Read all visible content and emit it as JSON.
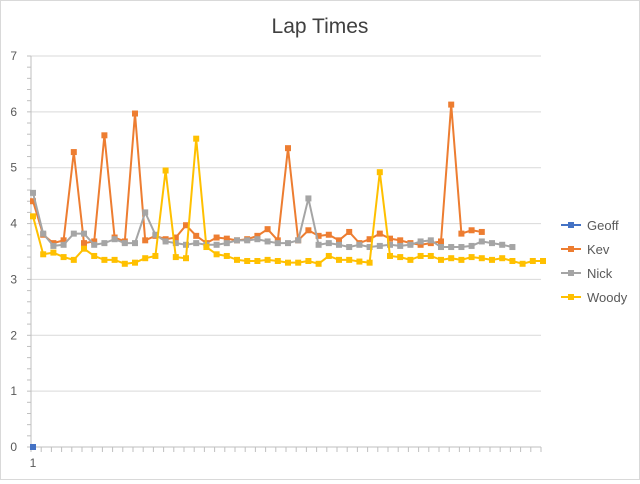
{
  "chart_data": {
    "type": "line",
    "title": "Lap Times",
    "xlabel": "",
    "ylabel": "",
    "ylim": [
      0,
      7
    ],
    "yticks": [
      0,
      1,
      2,
      3,
      4,
      5,
      6,
      7
    ],
    "x_tick_labels": [
      "1"
    ],
    "x_count": 50,
    "grid": "horizontal",
    "legend_position": "right",
    "series": [
      {
        "name": "Geoff",
        "color": "#4472C4",
        "values": [
          0
        ]
      },
      {
        "name": "Kev",
        "color": "#ED7D31",
        "values": [
          4.4,
          3.8,
          3.65,
          3.7,
          5.28,
          3.65,
          3.68,
          5.58,
          3.75,
          3.68,
          5.97,
          3.7,
          3.78,
          3.72,
          3.75,
          3.97,
          3.78,
          3.65,
          3.75,
          3.73,
          3.7,
          3.72,
          3.78,
          3.9,
          3.7,
          5.35,
          3.7,
          3.88,
          3.78,
          3.8,
          3.7,
          3.85,
          3.65,
          3.72,
          3.82,
          3.73,
          3.7,
          3.65,
          3.62,
          3.65,
          3.68,
          6.13,
          3.82,
          3.88,
          3.85
        ]
      },
      {
        "name": "Nick",
        "color": "#A5A5A5",
        "values": [
          4.55,
          3.82,
          3.6,
          3.62,
          3.82,
          3.82,
          3.62,
          3.65,
          3.72,
          3.65,
          3.65,
          4.2,
          3.8,
          3.68,
          3.65,
          3.62,
          3.65,
          3.62,
          3.62,
          3.65,
          3.7,
          3.7,
          3.72,
          3.68,
          3.65,
          3.65,
          3.7,
          4.45,
          3.62,
          3.65,
          3.62,
          3.58,
          3.62,
          3.58,
          3.6,
          3.62,
          3.6,
          3.62,
          3.68,
          3.7,
          3.58,
          3.58,
          3.58,
          3.6,
          3.68,
          3.65,
          3.62,
          3.58
        ]
      },
      {
        "name": "Woody",
        "color": "#FFC000",
        "values": [
          4.13,
          3.45,
          3.48,
          3.4,
          3.35,
          3.55,
          3.42,
          3.35,
          3.35,
          3.28,
          3.3,
          3.38,
          3.42,
          4.95,
          3.4,
          3.38,
          5.52,
          3.58,
          3.45,
          3.42,
          3.35,
          3.33,
          3.33,
          3.35,
          3.33,
          3.3,
          3.3,
          3.33,
          3.28,
          3.42,
          3.35,
          3.35,
          3.32,
          3.3,
          4.92,
          3.42,
          3.4,
          3.35,
          3.42,
          3.42,
          3.35,
          3.38,
          3.35,
          3.4,
          3.38,
          3.35,
          3.38,
          3.33,
          3.28,
          3.33,
          3.33
        ]
      }
    ]
  }
}
